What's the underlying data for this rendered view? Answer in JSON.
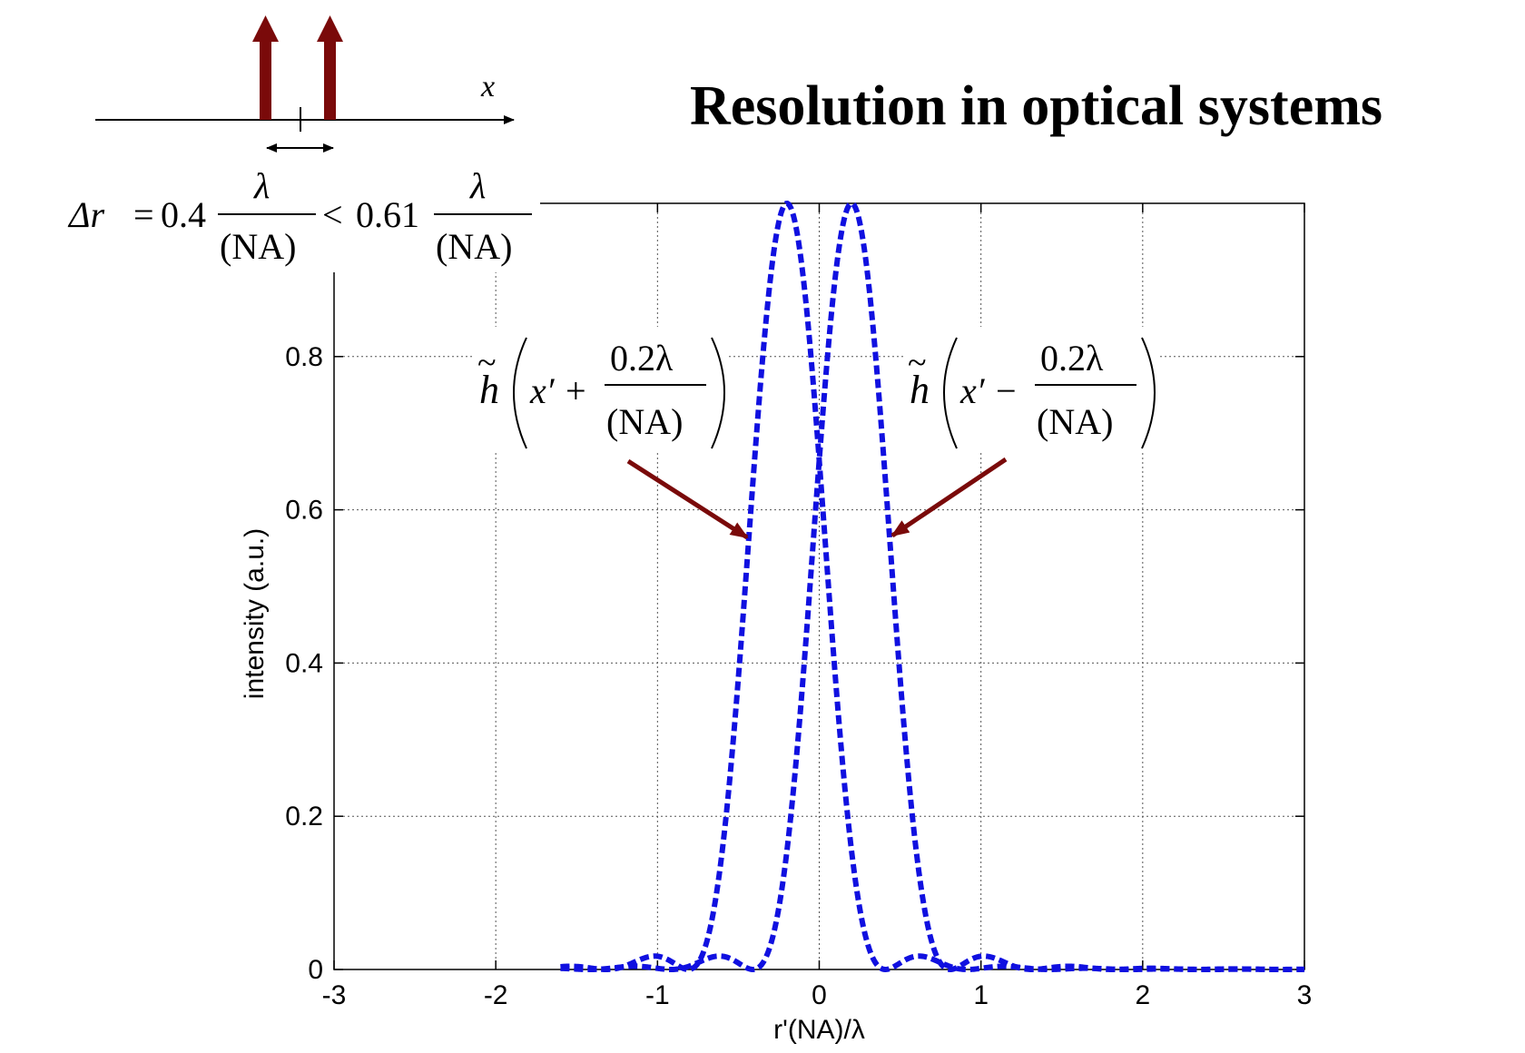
{
  "slide": {
    "title": "Resolution in optical systems"
  },
  "schematic": {
    "axis_label": "x",
    "impulse_color": "#7a0a0a",
    "equation": {
      "lhs": "Δr",
      "eq": "=",
      "coef1": "0.4",
      "lambda": "λ",
      "na": "(NA)",
      "lt": "<",
      "coef2": "0.61"
    }
  },
  "annotations": {
    "left": {
      "func": "h",
      "tilde": "~",
      "arg": "x′ +",
      "num": "0.2λ",
      "den": "(NA)"
    },
    "right": {
      "func": "h",
      "tilde": "~",
      "arg": "x′ −",
      "num": "0.2λ",
      "den": "(NA)"
    },
    "arrow_color": "#7a0a0a"
  },
  "chart_data": {
    "type": "line",
    "title": "",
    "xlabel": "r'(NA)/λ",
    "ylabel": "intensity (a.u.)",
    "xlim": [
      -3,
      3
    ],
    "ylim": [
      0,
      1
    ],
    "xticks": [
      "-3",
      "-2",
      "-1",
      "0",
      "1",
      "2",
      "3"
    ],
    "yticks": [
      "0",
      "0.2",
      "0.4",
      "0.6",
      "0.8"
    ],
    "grid": true,
    "line_style": "dashed",
    "line_color": "#1010e0",
    "x_domain": [
      -1.6,
      3
    ],
    "series": [
      {
        "shift": -0.2,
        "function": "airy",
        "peak": 1.0
      },
      {
        "shift": 0.2,
        "function": "airy",
        "peak": 1.0
      }
    ]
  }
}
